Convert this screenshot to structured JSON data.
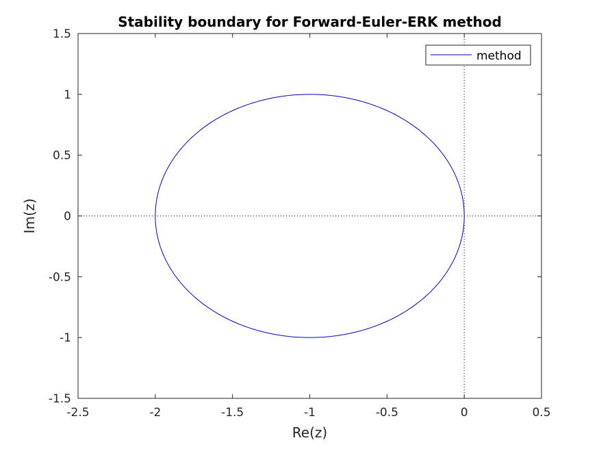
{
  "chart_data": {
    "type": "line",
    "title": "Stability boundary for Forward-Euler-ERK method",
    "xlabel": "Re(z)",
    "ylabel": "Im(z)",
    "xlim": [
      -2.5,
      0.5
    ],
    "ylim": [
      -1.5,
      1.5
    ],
    "xticks": [
      -2.5,
      -2,
      -1.5,
      -1,
      -0.5,
      0,
      0.5
    ],
    "yticks": [
      -1.5,
      -1,
      -0.5,
      0,
      0.5,
      1,
      1.5
    ],
    "xtick_labels": [
      "-2.5",
      "-2",
      "-1.5",
      "-1",
      "-0.5",
      "0",
      "0.5"
    ],
    "ytick_labels": [
      "-1.5",
      "-1",
      "-0.5",
      "0",
      "0.5",
      "1",
      "1.5"
    ],
    "grid": false,
    "reference_lines": [
      {
        "orientation": "horizontal",
        "value": 0,
        "style": "dotted"
      },
      {
        "orientation": "vertical",
        "value": 0,
        "style": "dotted"
      }
    ],
    "legend_position": "top-right",
    "series": [
      {
        "name": "method",
        "color": "#0000cc",
        "shape": "circle",
        "center": [
          -1,
          0
        ],
        "radius": 1,
        "x": [
          0,
          -0.134,
          -0.5,
          -1,
          -1.5,
          -1.866,
          -2,
          -1.866,
          -1.5,
          -1,
          -0.5,
          -0.134,
          0
        ],
        "y": [
          0,
          0.5,
          0.866,
          1,
          0.866,
          0.5,
          0,
          -0.5,
          -0.866,
          -1,
          -0.866,
          -0.5,
          0
        ]
      }
    ]
  }
}
